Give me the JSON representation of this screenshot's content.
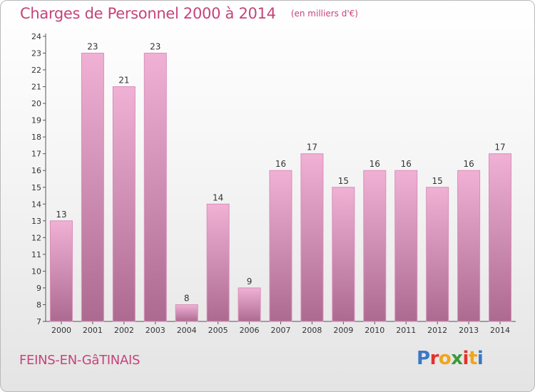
{
  "header": {
    "title": "Charges de Personnel 2000 à 2014",
    "subtitle": "(en milliers d'€)"
  },
  "footer": {
    "commune": "FEINS-EN-GâTINAIS",
    "brand": "Proxiti"
  },
  "colors": {
    "accent": "#c4447a",
    "bar_light": "#f0b1d5",
    "bar_dark": "#ad6a91"
  },
  "chart_data": {
    "type": "bar",
    "title": "Charges de Personnel 2000 à 2014",
    "subtitle": "(en milliers d'€)",
    "categories": [
      "2000",
      "2001",
      "2002",
      "2003",
      "2004",
      "2005",
      "2006",
      "2007",
      "2008",
      "2009",
      "2010",
      "2011",
      "2012",
      "2013",
      "2014"
    ],
    "values": [
      13,
      23,
      21,
      23,
      8,
      14,
      9,
      16,
      17,
      15,
      16,
      16,
      15,
      16,
      17
    ],
    "ylim": [
      7,
      24
    ],
    "yticks": [
      7,
      8,
      9,
      10,
      11,
      12,
      13,
      14,
      15,
      16,
      17,
      18,
      19,
      20,
      21,
      22,
      23,
      24
    ],
    "xlabel": "",
    "ylabel": "",
    "grid": false,
    "data_labels": true
  }
}
